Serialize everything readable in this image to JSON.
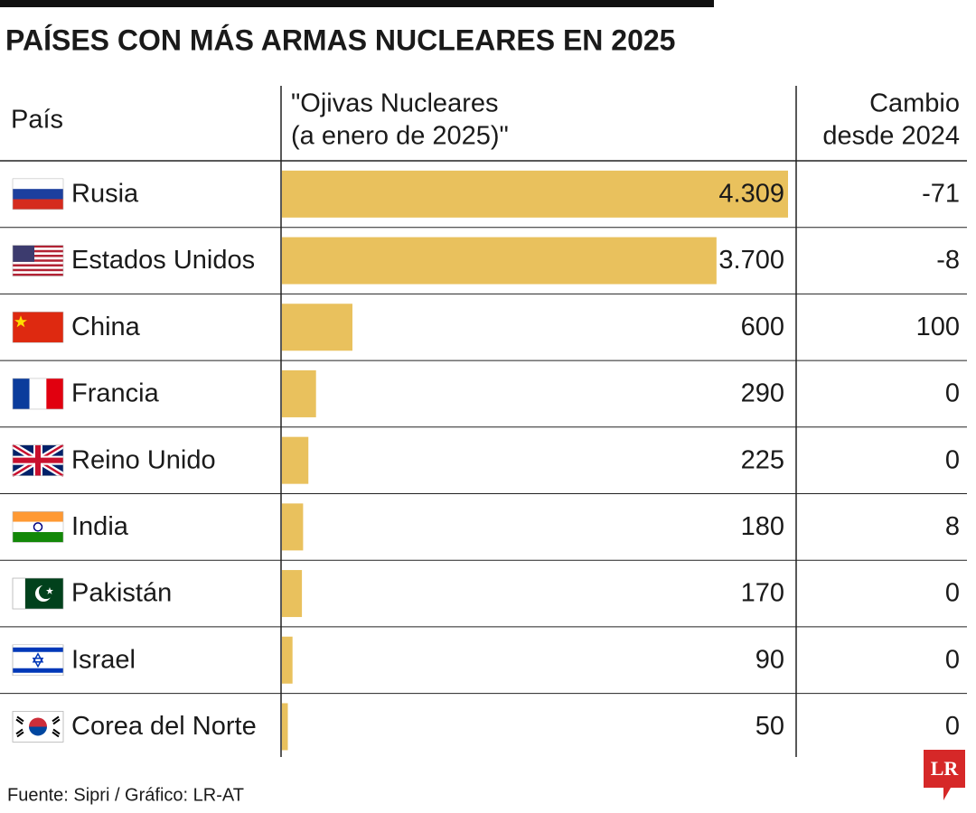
{
  "chart_data": {
    "type": "bar",
    "title": "PAÍSES CON MÁS ARMAS NUCLEARES EN 2025",
    "columns": [
      [
        "País"
      ],
      [
        "\"Ojivas Nucleares",
        "(a enero de 2025)\""
      ],
      [
        "Cambio",
        "desde 2024"
      ]
    ],
    "categories": [
      "Rusia",
      "Estados Unidos",
      "China",
      "Francia",
      "Reino Unido",
      "India",
      "Pakistán",
      "Israel",
      "Corea del Norte"
    ],
    "values": [
      4309,
      3700,
      600,
      290,
      225,
      180,
      170,
      90,
      50
    ],
    "value_labels": [
      "4.309",
      "3.700",
      "600",
      "290",
      "225",
      "180",
      "170",
      "90",
      "50"
    ],
    "change": [
      -71,
      -8,
      100,
      0,
      0,
      8,
      0,
      0,
      0
    ],
    "color": "#e9c15d",
    "source": "Fuente: Sipri / Gráfico: LR-AT",
    "logo": "LR"
  }
}
